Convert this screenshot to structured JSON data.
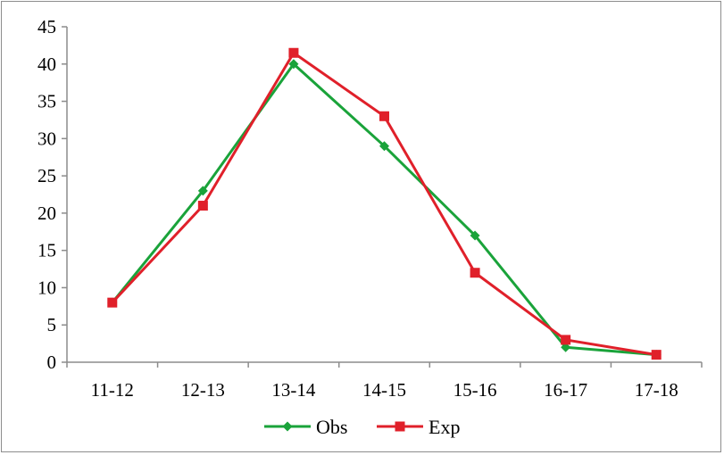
{
  "chart_data": {
    "type": "line",
    "title": "",
    "xlabel": "",
    "ylabel": "",
    "categories": [
      "11-12",
      "12-13",
      "13-14",
      "14-15",
      "15-16",
      "16-17",
      "17-18"
    ],
    "ylim": [
      0,
      45
    ],
    "yticks": [
      0,
      5,
      10,
      15,
      20,
      25,
      30,
      35,
      40,
      45
    ],
    "grid": false,
    "legend_position": "bottom",
    "series": [
      {
        "name": "Obs",
        "values": [
          8,
          23,
          40,
          29,
          17,
          2,
          1
        ],
        "color": "#1aa33a",
        "marker": "diamond"
      },
      {
        "name": "Exp",
        "values": [
          8,
          21,
          41.5,
          33,
          12,
          3,
          1
        ],
        "color": "#e0202a",
        "marker": "square"
      }
    ]
  }
}
